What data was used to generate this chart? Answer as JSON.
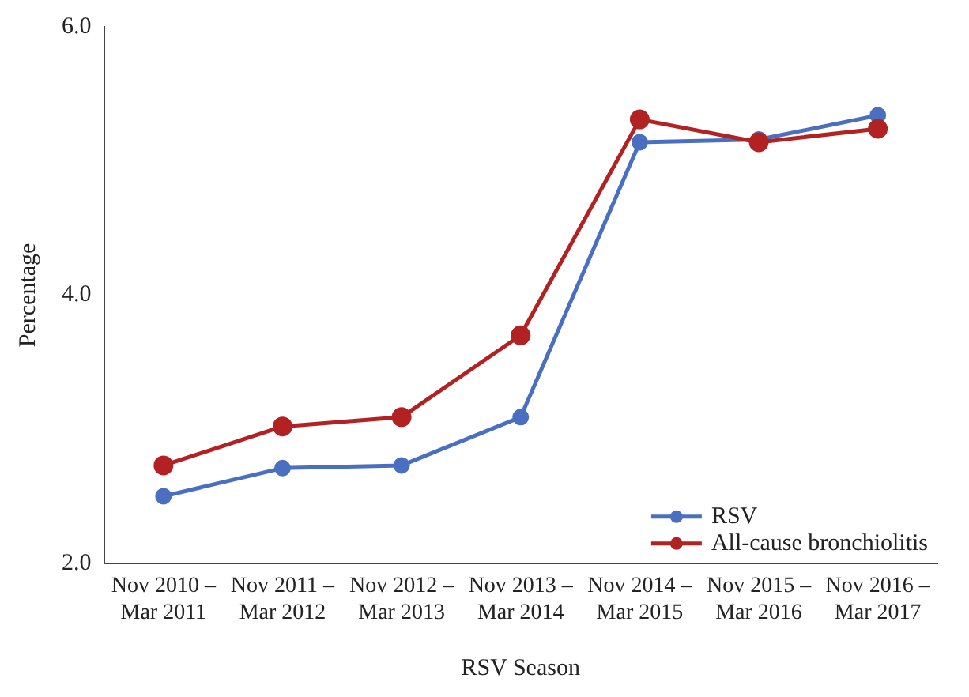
{
  "chart_data": {
    "type": "line",
    "xlabel": "RSV Season",
    "ylabel": "Percentage",
    "categories": [
      "Nov 2010 –\nMar 2011",
      "Nov 2011 –\nMar 2012",
      "Nov 2012 –\nMar 2013",
      "Nov 2013 –\nMar 2014",
      "Nov 2014 –\nMar 2015",
      "Nov 2015 –\nMar 2016",
      "Nov 2016 –\nMar 2017"
    ],
    "series": [
      {
        "name": "RSV",
        "color": "#4a6fc0",
        "values": [
          2.5,
          2.71,
          2.73,
          3.09,
          5.14,
          5.16,
          5.34
        ]
      },
      {
        "name": "All-cause bronchiolitis",
        "color": "#b22222",
        "values": [
          2.73,
          3.02,
          3.09,
          3.7,
          5.31,
          5.14,
          5.24
        ]
      }
    ],
    "ylim": [
      2,
      6
    ],
    "yticks": [
      {
        "value": 2,
        "label": "2.0"
      },
      {
        "value": 4,
        "label": "4.0"
      },
      {
        "value": 6,
        "label": "6.0"
      }
    ],
    "grid": false,
    "legend": "bottom right",
    "marker": "circle",
    "line_style": "solid"
  }
}
